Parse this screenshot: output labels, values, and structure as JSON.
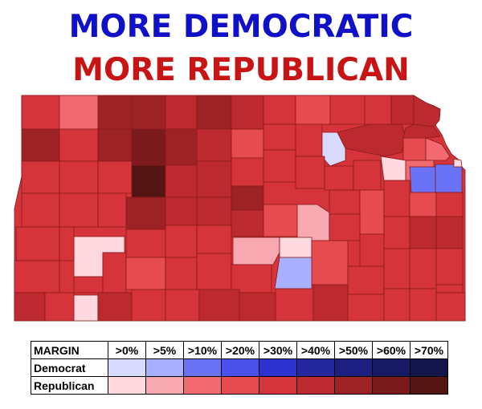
{
  "title": {
    "democratic": "MORE DEMOCRATIC",
    "democratic_color": "#1010c8",
    "republican": "MORE REPUBLICAN",
    "republican_color": "#c81414"
  },
  "legend": {
    "margin_label": "MARGIN",
    "bins": [
      ">0%",
      ">5%",
      ">10%",
      ">20%",
      ">30%",
      ">40%",
      ">50%",
      ">60%",
      ">70%"
    ],
    "rows": [
      {
        "party": "Democrat",
        "colors": [
          "#d8dbff",
          "#a9b0ff",
          "#6a72f5",
          "#4b52ec",
          "#2e32d0",
          "#24279e",
          "#1c1f80",
          "#181a66",
          "#12144c"
        ]
      },
      {
        "party": "Republican",
        "colors": [
          "#ffd9df",
          "#f8a8b0",
          "#f06a70",
          "#e64b50",
          "#d4343a",
          "#bc2a2f",
          "#9c2226",
          "#7a1a1c",
          "#541414"
        ]
      }
    ]
  }
}
